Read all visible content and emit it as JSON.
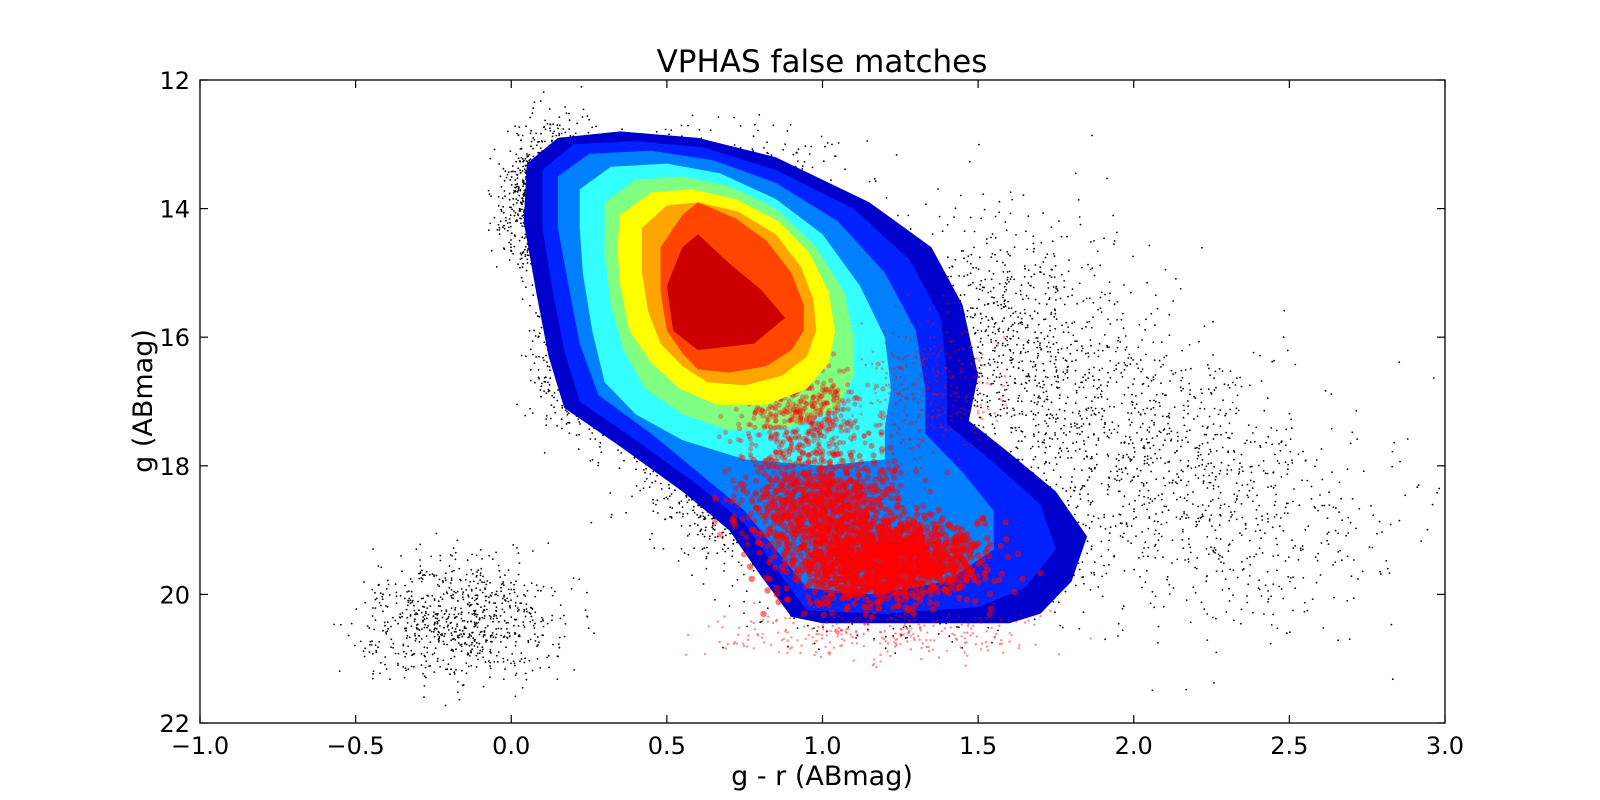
{
  "chart_data": {
    "type": "scatter",
    "title": "VPHAS false matches",
    "xlabel": "g - r (ABmag)",
    "ylabel": "g (ABmag)",
    "xlim": [
      -1.0,
      3.0
    ],
    "ylim": [
      22,
      12
    ],
    "y_inverted": true,
    "grid": false,
    "legend": "none",
    "x_ticks": [
      -1.0,
      -0.5,
      0.0,
      0.5,
      1.0,
      1.5,
      2.0,
      2.5,
      3.0
    ],
    "x_tick_labels": [
      "−1.0",
      "−0.5",
      "0.0",
      "0.5",
      "1.0",
      "1.5",
      "2.0",
      "2.5",
      "3.0"
    ],
    "y_ticks": [
      12,
      14,
      16,
      18,
      20,
      22
    ],
    "y_tick_labels": [
      "12",
      "14",
      "16",
      "18",
      "20",
      "22"
    ],
    "colors": {
      "background_points": "#000000",
      "false_matches": "#ff0000",
      "contour_levels": [
        "#0000cc",
        "#0022ff",
        "#0080ff",
        "#33ffff",
        "#80ff80",
        "#ffff00",
        "#ffa500",
        "#ff4500",
        "#cc0000"
      ]
    },
    "contours": [
      {
        "level": 1,
        "color": "#0000cc",
        "path": [
          [
            0.05,
            13.3
          ],
          [
            0.15,
            12.9
          ],
          [
            0.35,
            12.8
          ],
          [
            0.6,
            12.9
          ],
          [
            0.85,
            13.2
          ],
          [
            1.15,
            13.9
          ],
          [
            1.35,
            14.6
          ],
          [
            1.45,
            15.5
          ],
          [
            1.5,
            16.6
          ],
          [
            1.47,
            17.3
          ],
          [
            1.6,
            17.8
          ],
          [
            1.75,
            18.4
          ],
          [
            1.85,
            19.1
          ],
          [
            1.8,
            19.8
          ],
          [
            1.7,
            20.3
          ],
          [
            1.6,
            20.45
          ],
          [
            1.35,
            20.45
          ],
          [
            1.0,
            20.45
          ],
          [
            0.9,
            20.35
          ],
          [
            0.8,
            19.7
          ],
          [
            0.7,
            19.0
          ],
          [
            0.55,
            18.4
          ],
          [
            0.35,
            17.7
          ],
          [
            0.17,
            17.1
          ],
          [
            0.12,
            16.3
          ],
          [
            0.08,
            15.3
          ],
          [
            0.04,
            14.2
          ]
        ]
      },
      {
        "level": 2,
        "color": "#0022ff",
        "path": [
          [
            0.1,
            13.4
          ],
          [
            0.2,
            13.0
          ],
          [
            0.4,
            12.95
          ],
          [
            0.62,
            13.05
          ],
          [
            0.85,
            13.4
          ],
          [
            1.1,
            14.0
          ],
          [
            1.28,
            14.8
          ],
          [
            1.38,
            15.7
          ],
          [
            1.4,
            16.6
          ],
          [
            1.4,
            17.35
          ],
          [
            1.55,
            17.95
          ],
          [
            1.7,
            18.6
          ],
          [
            1.75,
            19.3
          ],
          [
            1.65,
            19.9
          ],
          [
            1.5,
            20.2
          ],
          [
            1.2,
            20.3
          ],
          [
            0.95,
            20.25
          ],
          [
            0.85,
            19.6
          ],
          [
            0.75,
            18.9
          ],
          [
            0.6,
            18.3
          ],
          [
            0.4,
            17.6
          ],
          [
            0.22,
            17.0
          ],
          [
            0.17,
            16.2
          ],
          [
            0.13,
            15.2
          ],
          [
            0.1,
            14.3
          ]
        ]
      },
      {
        "level": 3,
        "color": "#0080ff",
        "path": [
          [
            0.15,
            13.5
          ],
          [
            0.25,
            13.15
          ],
          [
            0.45,
            13.1
          ],
          [
            0.65,
            13.25
          ],
          [
            0.85,
            13.6
          ],
          [
            1.05,
            14.2
          ],
          [
            1.2,
            15.0
          ],
          [
            1.3,
            15.9
          ],
          [
            1.33,
            16.8
          ],
          [
            1.33,
            17.5
          ],
          [
            1.45,
            18.1
          ],
          [
            1.55,
            18.7
          ],
          [
            1.55,
            19.3
          ],
          [
            1.4,
            19.8
          ],
          [
            1.15,
            20.0
          ],
          [
            0.95,
            19.9
          ],
          [
            0.85,
            19.3
          ],
          [
            0.75,
            18.7
          ],
          [
            0.6,
            18.1
          ],
          [
            0.45,
            17.5
          ],
          [
            0.28,
            16.9
          ],
          [
            0.22,
            16.1
          ],
          [
            0.18,
            15.1
          ],
          [
            0.15,
            14.3
          ]
        ]
      },
      {
        "level": 4,
        "color": "#33ffff",
        "path": [
          [
            0.22,
            13.7
          ],
          [
            0.32,
            13.35
          ],
          [
            0.5,
            13.3
          ],
          [
            0.67,
            13.45
          ],
          [
            0.85,
            13.85
          ],
          [
            1.0,
            14.4
          ],
          [
            1.12,
            15.2
          ],
          [
            1.2,
            16.0
          ],
          [
            1.22,
            16.8
          ],
          [
            1.2,
            17.4
          ],
          [
            1.2,
            17.9
          ],
          [
            1.0,
            18.0
          ],
          [
            0.75,
            17.9
          ],
          [
            0.55,
            17.6
          ],
          [
            0.4,
            17.2
          ],
          [
            0.3,
            16.7
          ],
          [
            0.26,
            15.9
          ],
          [
            0.23,
            15.0
          ],
          [
            0.22,
            14.3
          ]
        ]
      },
      {
        "level": 5,
        "color": "#80ff80",
        "path": [
          [
            0.3,
            13.9
          ],
          [
            0.4,
            13.55
          ],
          [
            0.55,
            13.5
          ],
          [
            0.7,
            13.65
          ],
          [
            0.85,
            14.0
          ],
          [
            0.98,
            14.6
          ],
          [
            1.07,
            15.3
          ],
          [
            1.1,
            16.0
          ],
          [
            1.1,
            16.6
          ],
          [
            1.05,
            17.1
          ],
          [
            0.9,
            17.4
          ],
          [
            0.7,
            17.45
          ],
          [
            0.55,
            17.2
          ],
          [
            0.43,
            16.8
          ],
          [
            0.36,
            16.2
          ],
          [
            0.32,
            15.5
          ],
          [
            0.3,
            14.7
          ]
        ]
      },
      {
        "level": 6,
        "color": "#ffff00",
        "path": [
          [
            0.35,
            14.1
          ],
          [
            0.45,
            13.75
          ],
          [
            0.58,
            13.7
          ],
          [
            0.72,
            13.85
          ],
          [
            0.86,
            14.2
          ],
          [
            0.96,
            14.7
          ],
          [
            1.02,
            15.3
          ],
          [
            1.04,
            15.9
          ],
          [
            1.02,
            16.4
          ],
          [
            0.95,
            16.8
          ],
          [
            0.82,
            17.05
          ],
          [
            0.66,
            17.05
          ],
          [
            0.54,
            16.8
          ],
          [
            0.45,
            16.4
          ],
          [
            0.38,
            15.9
          ],
          [
            0.35,
            15.2
          ],
          [
            0.34,
            14.6
          ]
        ]
      },
      {
        "level": 7,
        "color": "#ffa500",
        "path": [
          [
            0.42,
            14.3
          ],
          [
            0.5,
            13.95
          ],
          [
            0.6,
            13.9
          ],
          [
            0.73,
            14.05
          ],
          [
            0.85,
            14.4
          ],
          [
            0.93,
            14.9
          ],
          [
            0.97,
            15.4
          ],
          [
            0.98,
            15.9
          ],
          [
            0.95,
            16.3
          ],
          [
            0.87,
            16.6
          ],
          [
            0.75,
            16.75
          ],
          [
            0.63,
            16.7
          ],
          [
            0.55,
            16.45
          ],
          [
            0.48,
            16.1
          ],
          [
            0.44,
            15.6
          ],
          [
            0.42,
            15.0
          ]
        ]
      },
      {
        "level": 8,
        "color": "#ff4500",
        "path": [
          [
            0.48,
            14.6
          ],
          [
            0.55,
            14.1
          ],
          [
            0.6,
            13.9
          ],
          [
            0.72,
            14.15
          ],
          [
            0.82,
            14.5
          ],
          [
            0.9,
            15.0
          ],
          [
            0.94,
            15.5
          ],
          [
            0.94,
            15.9
          ],
          [
            0.9,
            16.2
          ],
          [
            0.82,
            16.45
          ],
          [
            0.7,
            16.55
          ],
          [
            0.6,
            16.5
          ],
          [
            0.55,
            16.25
          ],
          [
            0.5,
            15.9
          ],
          [
            0.48,
            15.3
          ]
        ]
      },
      {
        "level": 9,
        "color": "#cc0000",
        "path": [
          [
            0.5,
            15.2
          ],
          [
            0.55,
            14.6
          ],
          [
            0.6,
            14.4
          ],
          [
            0.7,
            14.85
          ],
          [
            0.8,
            15.25
          ],
          [
            0.88,
            15.7
          ],
          [
            0.78,
            16.1
          ],
          [
            0.6,
            16.2
          ],
          [
            0.52,
            15.9
          ]
        ]
      }
    ]
  }
}
